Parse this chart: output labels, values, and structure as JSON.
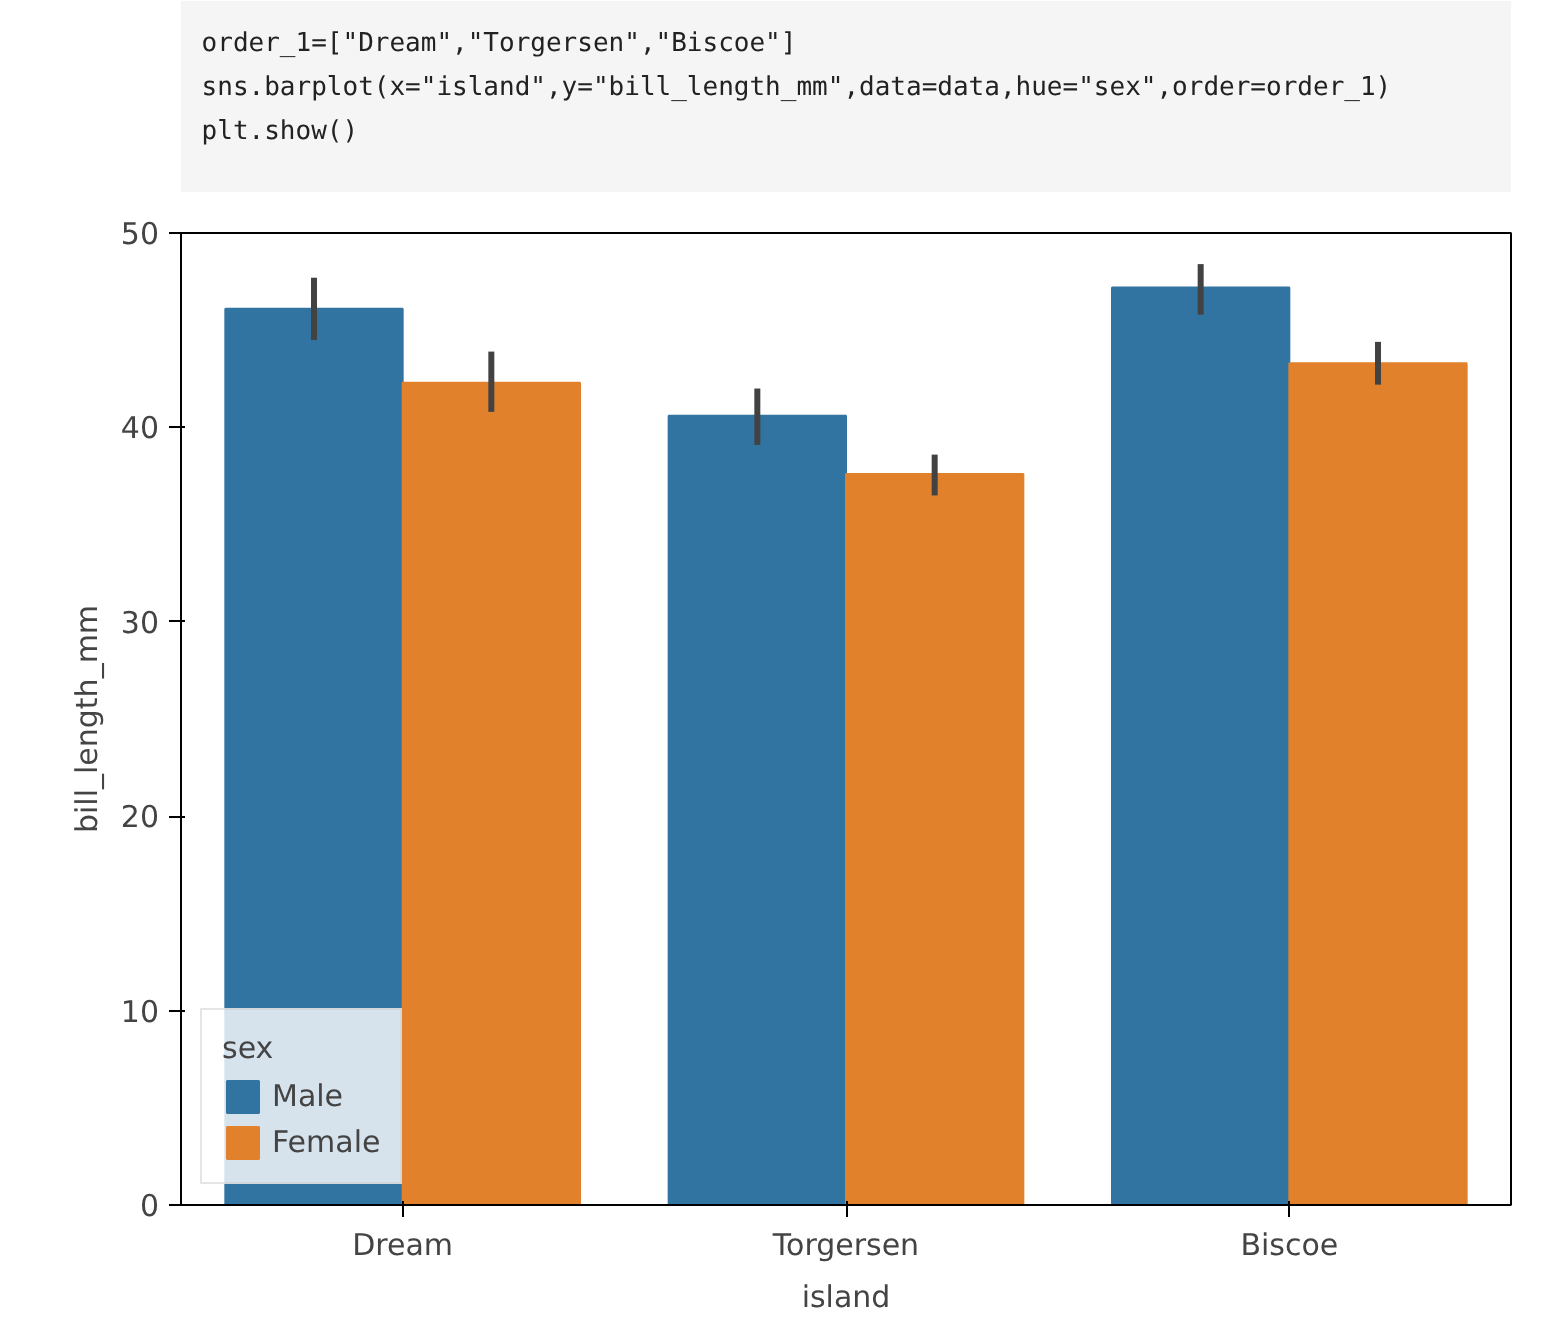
{
  "chart_data": {
    "type": "bar",
    "xlabel": "island",
    "ylabel": "bill_length_mm",
    "legend_title": "sex",
    "annotations": [
      "order_1=[\"Dream\",\"Torgersen\",\"Biscoe\"]",
      "sns.barplot(x=\"island\",y=\"bill_length_mm\",data=data,hue=\"sex\",order=order_1)",
      "plt.show()"
    ],
    "categories": [
      "Dream",
      "Torgersen",
      "Biscoe"
    ],
    "series": [
      {
        "name": "Male",
        "color": "#3274a1",
        "values": [
          46.1,
          40.6,
          47.2
        ],
        "errors": [
          [
            44.5,
            47.7
          ],
          [
            39.1,
            42.0
          ],
          [
            45.8,
            48.4
          ]
        ]
      },
      {
        "name": "Female",
        "color": "#e1812c",
        "values": [
          42.3,
          37.6,
          43.3
        ],
        "errors": [
          [
            40.8,
            43.9
          ],
          [
            36.5,
            38.6
          ],
          [
            42.2,
            44.4
          ]
        ]
      }
    ],
    "ylim": [
      0,
      50
    ],
    "yticks": [
      0,
      10,
      20,
      30,
      40,
      50
    ],
    "grid": false,
    "legend": "bottom left"
  }
}
